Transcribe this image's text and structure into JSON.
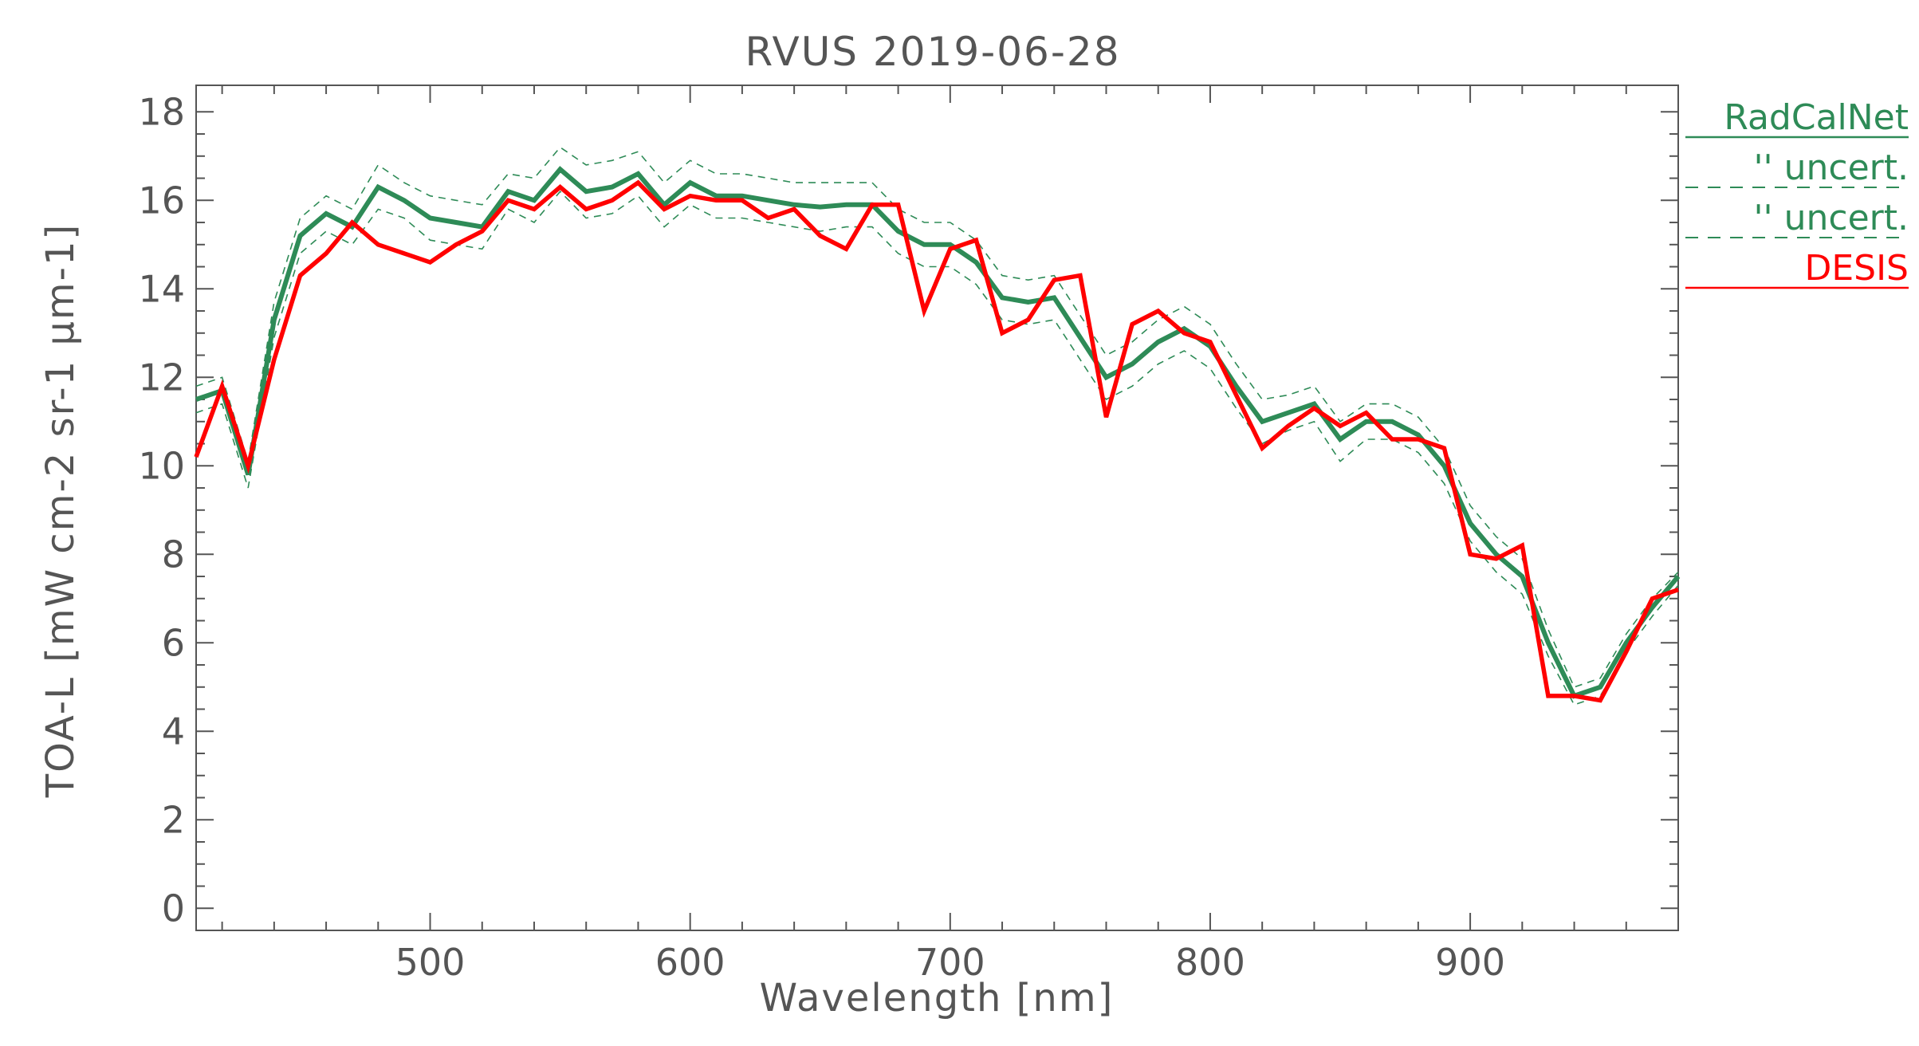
{
  "colors": {
    "radcalnet": "#2e8b57",
    "uncert": "#2e8b57",
    "desis": "#ff0000",
    "axis": "#555555"
  },
  "chart_data": {
    "type": "line",
    "title": "RVUS 2019-06-28",
    "xlabel": "Wavelength [nm]",
    "ylabel": "TOA-L [mW cm-2 sr-1 µm-1]",
    "xlim": [
      410,
      980
    ],
    "ylim": [
      -0.5,
      18.6
    ],
    "x_ticks": [
      500,
      600,
      700,
      800,
      900
    ],
    "y_ticks": [
      0,
      2,
      4,
      6,
      8,
      10,
      12,
      14,
      16,
      18
    ],
    "legend_position": "right, outside plot, top",
    "legend": [
      {
        "label": "RadCalNet",
        "style": "solid",
        "color": "#2e8b57"
      },
      {
        "label": "'' uncert.",
        "style": "dashed",
        "color": "#2e8b57"
      },
      {
        "label": "'' uncert.",
        "style": "dashed",
        "color": "#2e8b57"
      },
      {
        "label": "DESIS",
        "style": "solid",
        "color": "#ff0000"
      }
    ],
    "x": [
      410,
      420,
      430,
      440,
      450,
      460,
      470,
      480,
      490,
      500,
      510,
      520,
      530,
      540,
      550,
      560,
      570,
      580,
      590,
      600,
      610,
      620,
      630,
      640,
      650,
      660,
      670,
      680,
      690,
      700,
      710,
      720,
      730,
      740,
      750,
      760,
      770,
      780,
      790,
      800,
      810,
      820,
      830,
      840,
      850,
      860,
      870,
      880,
      890,
      900,
      910,
      920,
      930,
      940,
      950,
      960,
      970,
      980
    ],
    "series": [
      {
        "name": "RadCalNet",
        "style": "solid",
        "values": [
          11.5,
          11.7,
          9.8,
          13.3,
          15.2,
          15.7,
          15.4,
          16.3,
          16.0,
          15.6,
          15.5,
          15.4,
          16.2,
          16.0,
          16.7,
          16.2,
          16.3,
          16.6,
          15.9,
          16.4,
          16.1,
          16.1,
          16.0,
          15.9,
          15.85,
          15.9,
          15.9,
          15.3,
          15.0,
          15.0,
          14.6,
          13.8,
          13.7,
          13.8,
          12.9,
          12.0,
          12.3,
          12.8,
          13.1,
          12.7,
          11.8,
          11.0,
          11.2,
          11.4,
          10.6,
          11.0,
          11.0,
          10.7,
          10.0,
          8.7,
          8.0,
          7.5,
          6.0,
          4.8,
          5.0,
          6.0,
          6.8,
          7.5
        ]
      },
      {
        "name": "'' uncert.",
        "style": "dashed",
        "values": [
          11.8,
          12.0,
          10.1,
          13.7,
          15.6,
          16.1,
          15.8,
          16.8,
          16.4,
          16.1,
          16.0,
          15.9,
          16.6,
          16.5,
          17.2,
          16.8,
          16.9,
          17.1,
          16.4,
          16.9,
          16.6,
          16.6,
          16.5,
          16.4,
          16.4,
          16.4,
          16.4,
          15.8,
          15.5,
          15.5,
          15.1,
          14.3,
          14.2,
          14.3,
          13.4,
          12.5,
          12.8,
          13.3,
          13.6,
          13.2,
          12.3,
          11.5,
          11.6,
          11.8,
          11.0,
          11.4,
          11.4,
          11.1,
          10.4,
          9.1,
          8.4,
          7.9,
          6.3,
          5.0,
          5.2,
          6.2,
          7.0,
          7.6
        ]
      },
      {
        "name": "'' uncert.",
        "style": "dashed",
        "values": [
          11.2,
          11.4,
          9.5,
          12.9,
          14.8,
          15.3,
          15.0,
          15.8,
          15.6,
          15.1,
          15.0,
          14.9,
          15.8,
          15.5,
          16.2,
          15.6,
          15.7,
          16.1,
          15.4,
          15.9,
          15.6,
          15.6,
          15.5,
          15.4,
          15.3,
          15.4,
          15.4,
          14.8,
          14.5,
          14.5,
          14.1,
          13.3,
          13.2,
          13.3,
          12.4,
          11.5,
          11.8,
          12.3,
          12.6,
          12.2,
          11.3,
          10.5,
          10.8,
          11.0,
          10.1,
          10.6,
          10.6,
          10.3,
          9.6,
          8.3,
          7.6,
          7.1,
          5.7,
          4.6,
          4.8,
          5.8,
          6.6,
          7.3
        ]
      },
      {
        "name": "DESIS",
        "style": "solid",
        "values": [
          10.2,
          11.8,
          10.0,
          12.4,
          14.3,
          14.8,
          15.5,
          15.0,
          14.8,
          14.6,
          15.0,
          15.3,
          16.0,
          15.8,
          16.3,
          15.8,
          16.0,
          16.4,
          15.8,
          16.1,
          16.0,
          16.0,
          15.6,
          15.8,
          15.2,
          14.9,
          15.9,
          15.9,
          13.5,
          14.9,
          15.1,
          13.0,
          13.3,
          14.2,
          14.3,
          11.1,
          13.2,
          13.5,
          13.0,
          12.8,
          11.6,
          10.4,
          10.9,
          11.3,
          10.9,
          11.2,
          10.6,
          10.6,
          10.4,
          8.0,
          7.9,
          8.2,
          4.8,
          4.8,
          4.7,
          5.8,
          7.0,
          7.2
        ]
      }
    ]
  }
}
